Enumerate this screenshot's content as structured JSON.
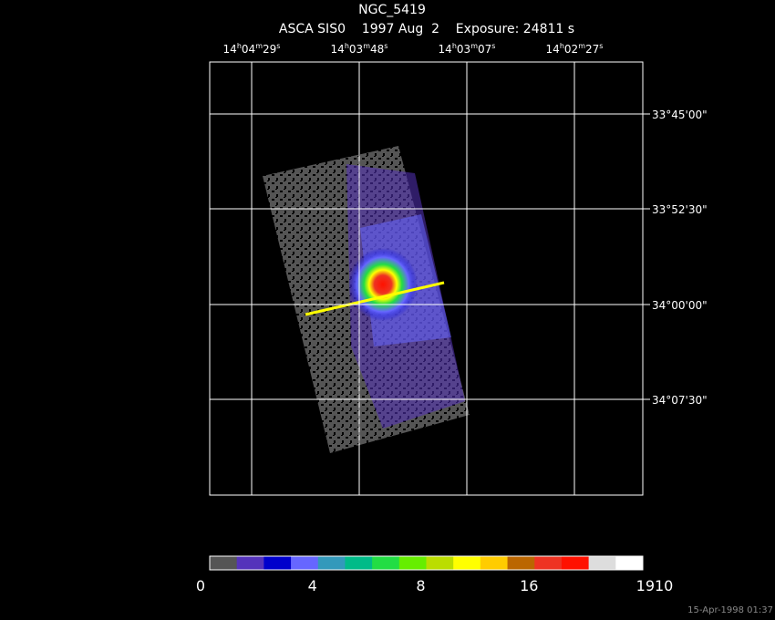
{
  "title": "NGC_5419",
  "subtitle": "ASCA SIS0    1997 Aug  2    Exposure: 24811 s",
  "ra_labels": [
    [
      "14",
      "h",
      "04",
      "m",
      "29",
      "s"
    ],
    [
      "14",
      "h",
      "03",
      "m",
      "48",
      "s"
    ],
    [
      "14",
      "h",
      "03",
      "m",
      "07",
      "s"
    ],
    [
      "14",
      "h",
      "02",
      "m",
      "27",
      "s"
    ]
  ],
  "dec_labels": [
    "33°45'00\"",
    "33°52'30\"",
    "34°00'00\"",
    "34°07'30\""
  ],
  "colorbar": {
    "colors": [
      "#555555",
      "#5533bb",
      "#0000cc",
      "#6666ff",
      "#3399bb",
      "#00bb88",
      "#22dd44",
      "#66ee00",
      "#bbdd00",
      "#ffff00",
      "#ffcc00",
      "#bb6600",
      "#ee3322",
      "#ff1100",
      "#dddddd",
      "#ffffff"
    ],
    "labels": [
      0,
      4,
      8,
      16,
      1910
    ]
  },
  "timestamp": "15-Apr-1998 01:37"
}
